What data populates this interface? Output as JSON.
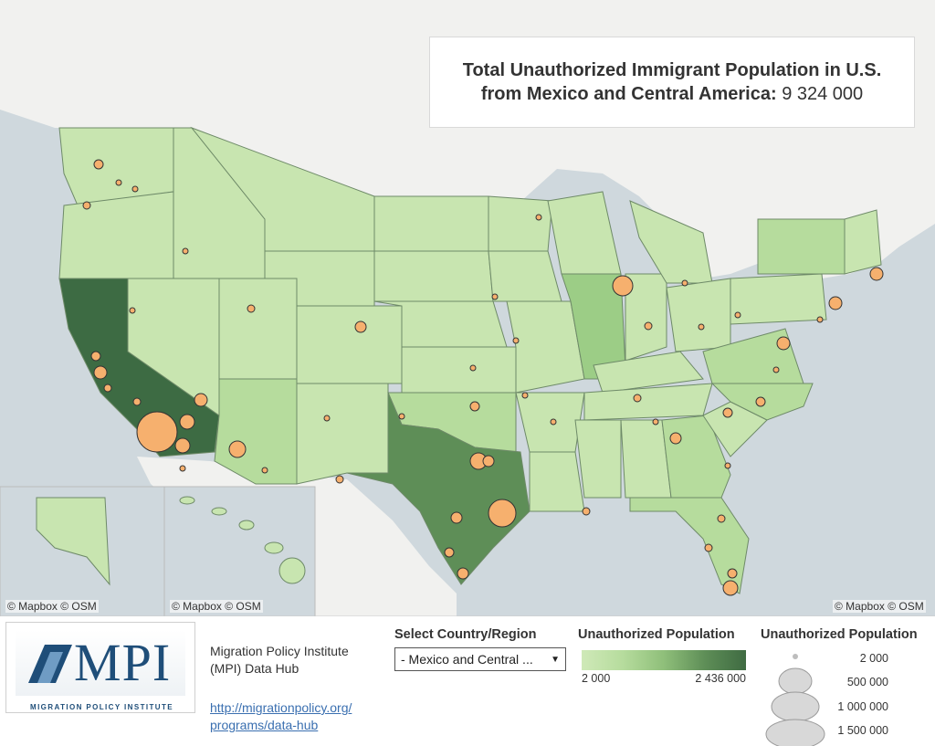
{
  "title": {
    "line1": "Total Unauthorized Immigrant Population in U.S.",
    "line2_label": "from Mexico and Central America:",
    "line2_value": "9 324 000"
  },
  "credits": {
    "main": "© Mapbox  © OSM",
    "inset_alaska": "© Mapbox  © OSM",
    "inset_hawaii": "© Mapbox  © OSM"
  },
  "logo": {
    "text": "MPI",
    "subtitle": "MIGRATION POLICY INSTITUTE"
  },
  "org": {
    "name": "Migration Policy Institute (MPI) Data Hub",
    "link": "http://migrationpolicy.org/ programs/data-hub"
  },
  "selector": {
    "label": "Select Country/Region",
    "value": "- Mexico and Central ..."
  },
  "color_legend": {
    "title": "Unauthorized Population",
    "min": "2 000",
    "max": "2 436 000",
    "colors": [
      "#cfe9b8",
      "#3f6b42"
    ]
  },
  "size_legend": {
    "title": "Unauthorized Population",
    "values": [
      "2 000",
      "500 000",
      "1 000 000",
      "1 500 000"
    ]
  },
  "colors": {
    "water": "#cfd8dd",
    "land_outside": "#f1f1ef",
    "bubble": "#f6b06e",
    "state_light": "#c8e5b0",
    "state_mid": "#9ccd86",
    "state_dark": "#3d6b43"
  }
}
